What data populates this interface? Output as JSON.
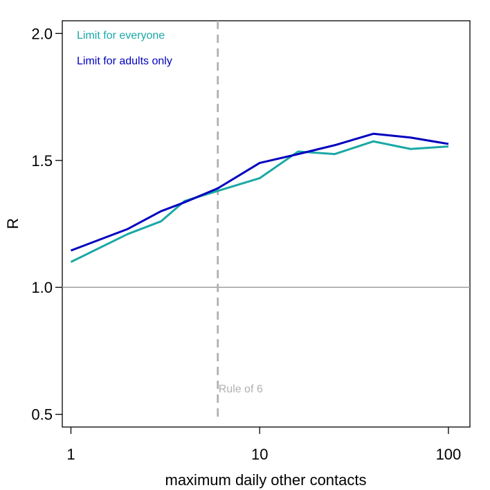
{
  "chart_data": {
    "type": "line",
    "title": "",
    "xlabel": "maximum daily other contacts",
    "ylabel": "R",
    "x_scale": "log",
    "xlim": [
      0.9,
      130
    ],
    "ylim": [
      0.45,
      2.05
    ],
    "x_ticks": [
      1,
      10,
      100
    ],
    "x_tick_labels": [
      "1",
      "10",
      "100"
    ],
    "y_ticks": [
      0.5,
      1.0,
      1.5,
      2.0
    ],
    "y_tick_labels": [
      "0.5",
      "1.0",
      "1.5",
      "2.0"
    ],
    "series": [
      {
        "name": "Limit for everyone",
        "color": "#1aa8a5",
        "x": [
          1,
          2,
          3,
          4,
          6,
          10,
          16,
          25,
          40,
          63,
          100
        ],
        "y": [
          1.1,
          1.21,
          1.26,
          1.34,
          1.38,
          1.43,
          1.535,
          1.525,
          1.575,
          1.545,
          1.555
        ]
      },
      {
        "name": "Limit for adults only",
        "color": "#0000bf",
        "x": [
          1,
          2,
          3,
          4,
          6,
          10,
          16,
          25,
          40,
          63,
          100
        ],
        "y": [
          1.145,
          1.23,
          1.3,
          1.335,
          1.39,
          1.49,
          1.525,
          1.56,
          1.605,
          1.59,
          1.565
        ]
      }
    ],
    "reference_lines": [
      {
        "orientation": "horizontal",
        "value": 1.0,
        "color": "#a6a6a6",
        "style": "solid"
      },
      {
        "orientation": "vertical",
        "value": 6,
        "color": "#b0b0b0",
        "style": "dashed",
        "label": "Rule of 6"
      }
    ],
    "legend_position": "top-left",
    "grid": false
  }
}
